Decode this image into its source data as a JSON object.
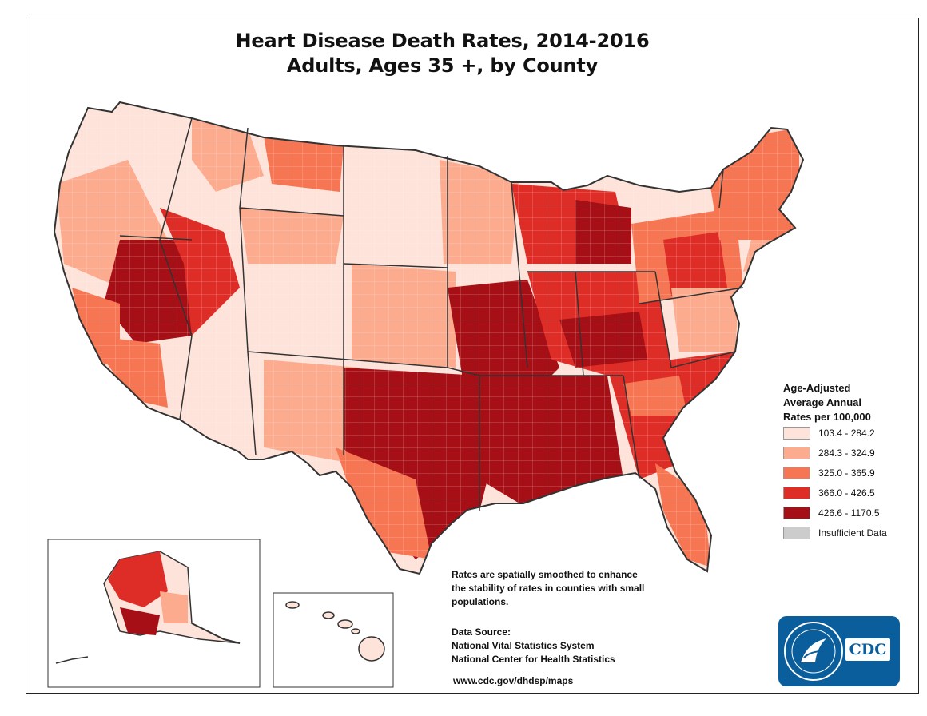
{
  "title": {
    "line1": "Heart Disease Death Rates, 2014-2016",
    "line2": "Adults, Ages 35 +, by County"
  },
  "legend": {
    "title_lines": [
      "Age-Adjusted",
      "Average Annual",
      "Rates per 100,000"
    ],
    "items": [
      {
        "label": "103.4 - 284.2",
        "color": "#fde3d9"
      },
      {
        "label": "284.3 - 324.9",
        "color": "#fcab8e"
      },
      {
        "label": "325.0 - 365.9",
        "color": "#f67654"
      },
      {
        "label": "366.0 - 426.5",
        "color": "#de2d26"
      },
      {
        "label": "426.6 - 1170.5",
        "color": "#a50f15"
      },
      {
        "label": "Insufficient Data",
        "color": "#cccccc"
      }
    ]
  },
  "note": {
    "lines": [
      "Rates are spatially smoothed to enhance",
      "the stability of rates in counties with small",
      "populations."
    ]
  },
  "source": {
    "lines": [
      "Data Source:",
      "National Vital Statistics System",
      "National Center for Health Statistics"
    ]
  },
  "url": "www.cdc.gov/dhdsp/maps",
  "logo": {
    "text": "CDC",
    "color": "#0a5e9c"
  },
  "colors": {
    "border": "#333333",
    "map_bg": "#ffffff"
  }
}
